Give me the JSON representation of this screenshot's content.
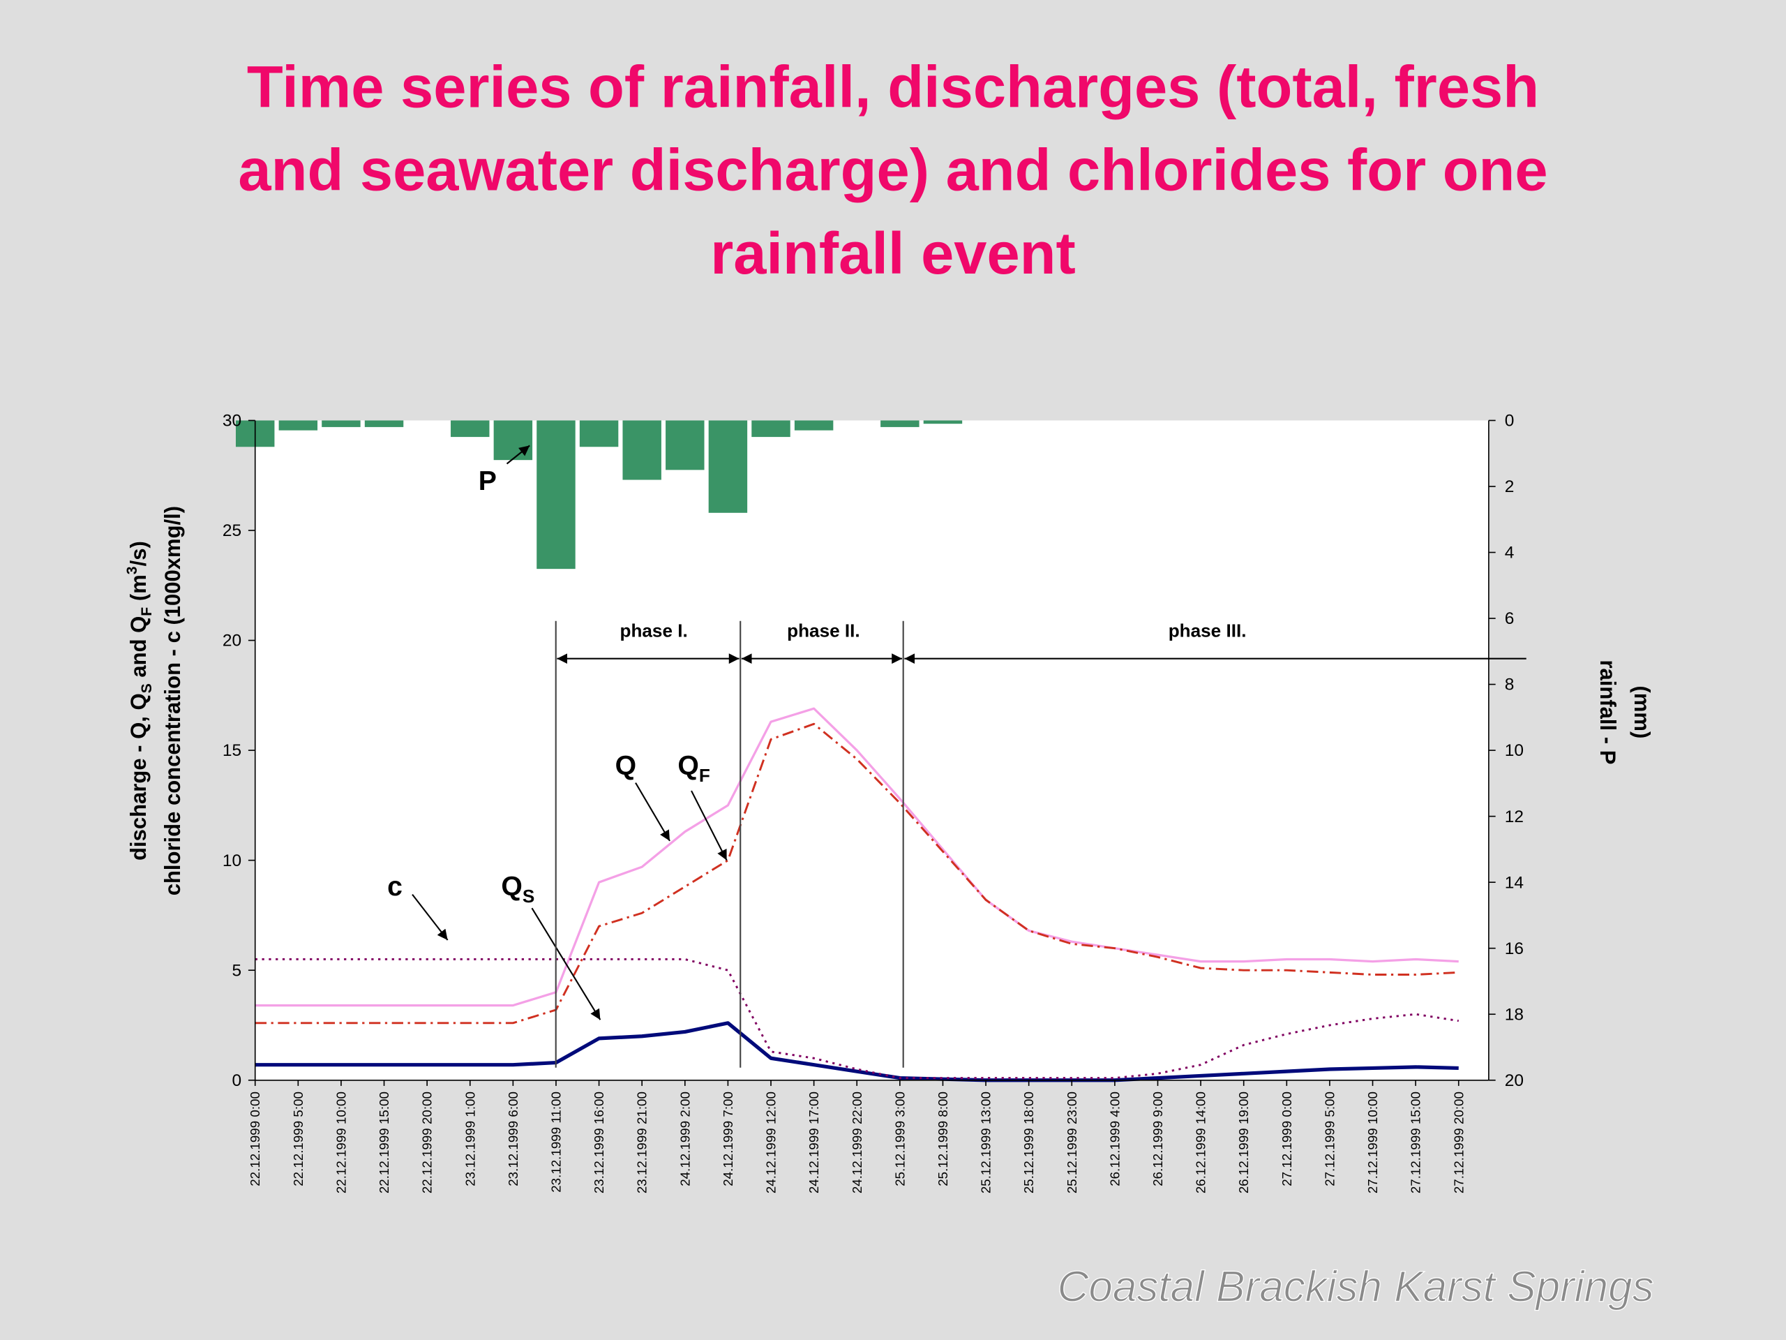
{
  "chart_data": {
    "type": "line",
    "title_lines": [
      "Time series of rainfall, discharges (total, fresh",
      "and seawater discharge) and chlorides for one",
      "rainfall event"
    ],
    "categories": [
      "22.12.1999 0:00",
      "22.12.1999 5:00",
      "22.12.1999 10:00",
      "22.12.1999 15:00",
      "22.12.1999 20:00",
      "23.12.1999 1:00",
      "23.12.1999 6:00",
      "23.12.1999 11:00",
      "23.12.1999 16:00",
      "23.12.1999 21:00",
      "24.12.1999 2:00",
      "24.12.1999 7:00",
      "24.12.1999 12:00",
      "24.12.1999 17:00",
      "24.12.1999 22:00",
      "25.12.1999 3:00",
      "25.12.1999 8:00",
      "25.12.1999 13:00",
      "25.12.1999 18:00",
      "25.12.1999 23:00",
      "26.12.1999 4:00",
      "26.12.1999 9:00",
      "26.12.1999 14:00",
      "26.12.1999 19:00",
      "27.12.1999 0:00",
      "27.12.1999 5:00",
      "27.12.1999 10:00",
      "27.12.1999 15:00",
      "27.12.1999 20:00"
    ],
    "series": [
      {
        "name": "P",
        "type": "bar",
        "axis": "y2",
        "color": "#3a9466",
        "values": [
          0.8,
          0.3,
          0.2,
          0.2,
          0,
          0.5,
          1.2,
          4.5,
          0.8,
          1.8,
          1.5,
          2.8,
          0.5,
          0.3,
          0,
          0.2,
          0.1,
          0,
          0,
          0,
          0,
          0,
          0,
          0,
          0,
          0,
          0,
          0,
          0
        ]
      },
      {
        "name": "Q",
        "color": "#f4a0e6",
        "dash": "solid",
        "values": [
          3.4,
          3.4,
          3.4,
          3.4,
          3.4,
          3.4,
          3.4,
          4.0,
          9.0,
          9.7,
          11.3,
          12.5,
          16.3,
          16.9,
          15.0,
          12.8,
          10.5,
          8.2,
          6.8,
          6.3,
          6.0,
          5.7,
          5.4,
          5.4,
          5.5,
          5.5,
          5.4,
          5.5,
          5.4
        ]
      },
      {
        "name": "QF",
        "color": "#d03020",
        "dash": "dashdot",
        "values": [
          2.6,
          2.6,
          2.6,
          2.6,
          2.6,
          2.6,
          2.6,
          3.2,
          7.0,
          7.6,
          8.8,
          10.0,
          15.5,
          16.2,
          14.6,
          12.6,
          10.4,
          8.2,
          6.8,
          6.2,
          6.0,
          5.6,
          5.1,
          5.0,
          5.0,
          4.9,
          4.8,
          4.8,
          4.9
        ]
      },
      {
        "name": "QS",
        "color": "#000a7a",
        "dash": "thick",
        "values": [
          0.7,
          0.7,
          0.7,
          0.7,
          0.7,
          0.7,
          0.7,
          0.8,
          1.9,
          2.0,
          2.2,
          2.6,
          1.0,
          0.7,
          0.4,
          0.1,
          0.05,
          0,
          0,
          0,
          0,
          0.1,
          0.2,
          0.3,
          0.4,
          0.5,
          0.55,
          0.6,
          0.55
        ]
      },
      {
        "name": "c",
        "color": "#800060",
        "dash": "dotted",
        "values": [
          5.5,
          5.5,
          5.5,
          5.5,
          5.5,
          5.5,
          5.5,
          5.5,
          5.5,
          5.5,
          5.5,
          5.0,
          1.3,
          1.0,
          0.5,
          0.1,
          0.1,
          0.1,
          0.1,
          0.1,
          0.1,
          0.3,
          0.7,
          1.6,
          2.1,
          2.5,
          2.8,
          3.0,
          2.7
        ]
      }
    ],
    "ylim": [
      0,
      30
    ],
    "yticks": [
      0,
      5,
      10,
      15,
      20,
      25,
      30
    ],
    "y2lim": [
      0,
      20
    ],
    "y2ticks": [
      0,
      2,
      4,
      6,
      8,
      10,
      12,
      14,
      16,
      18,
      20
    ],
    "y2_inverted": true,
    "y_label": [
      [
        "discharge - Q, Q",
        "S",
        " and Q",
        "F",
        " (m",
        "3",
        "/s)"
      ],
      [
        "chloride concentration - c (1000xmg/l)"
      ]
    ],
    "y2_label": [
      "rainfall - P",
      "(mm)"
    ],
    "annotations": [
      [
        "P"
      ],
      [
        "Q"
      ],
      [
        "Q",
        "F"
      ],
      [
        "Q",
        "S"
      ],
      [
        "c"
      ]
    ],
    "phases": [
      "phase I.",
      "phase II.",
      "phase III."
    ],
    "footer": "Coastal Brackish Karst Springs"
  }
}
